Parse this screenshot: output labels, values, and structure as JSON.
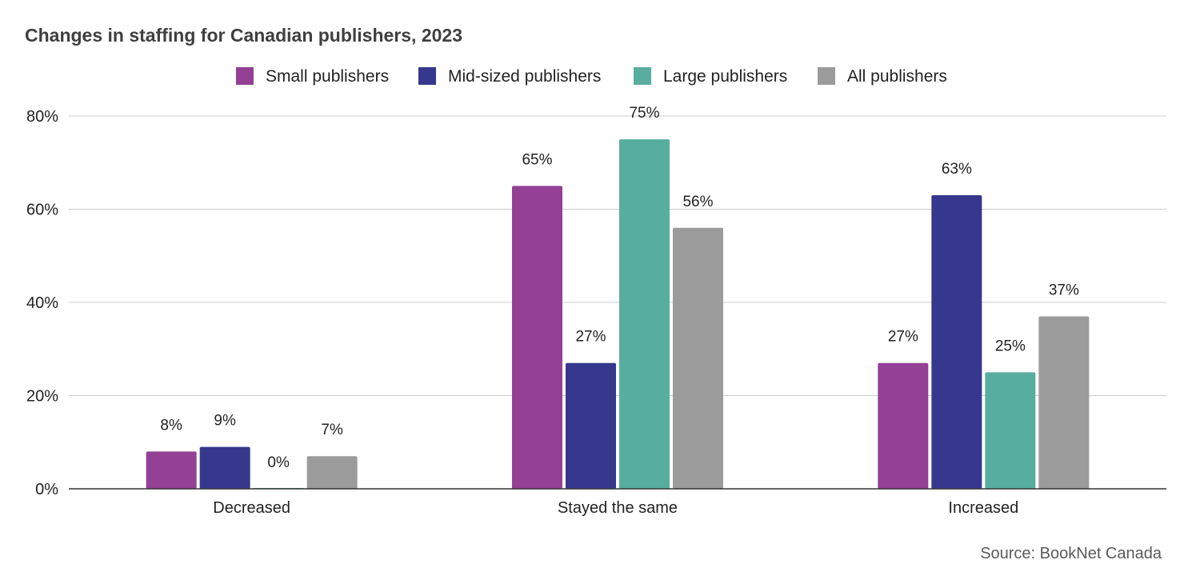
{
  "chart_data": {
    "type": "bar",
    "title": "Changes in staffing for Canadian publishers, 2023",
    "categories": [
      "Decreased",
      "Stayed the same",
      "Increased"
    ],
    "series": [
      {
        "name": "Small publishers",
        "color": "#934095",
        "values": [
          8,
          65,
          27
        ],
        "labels": [
          "8%",
          "65%",
          "27%"
        ]
      },
      {
        "name": "Mid-sized publishers",
        "color": "#36388d",
        "values": [
          9,
          27,
          63
        ],
        "labels": [
          "9%",
          "27%",
          "63%"
        ]
      },
      {
        "name": "Large publishers",
        "color": "#57ae9f",
        "values": [
          0,
          75,
          25
        ],
        "labels": [
          "0%",
          "75%",
          "25%"
        ]
      },
      {
        "name": "All publishers",
        "color": "#9b9b9b",
        "values": [
          7,
          56,
          37
        ],
        "labels": [
          "7%",
          "56%",
          "37%"
        ]
      }
    ],
    "ylim": [
      0,
      80
    ],
    "yticks": [
      0,
      20,
      40,
      60,
      80
    ],
    "ytick_labels": [
      "0%",
      "20%",
      "40%",
      "60%",
      "80%"
    ],
    "xlabel": "",
    "ylabel": "",
    "grid": true,
    "legend_position": "top-center",
    "source": "Source: BookNet Canada"
  }
}
